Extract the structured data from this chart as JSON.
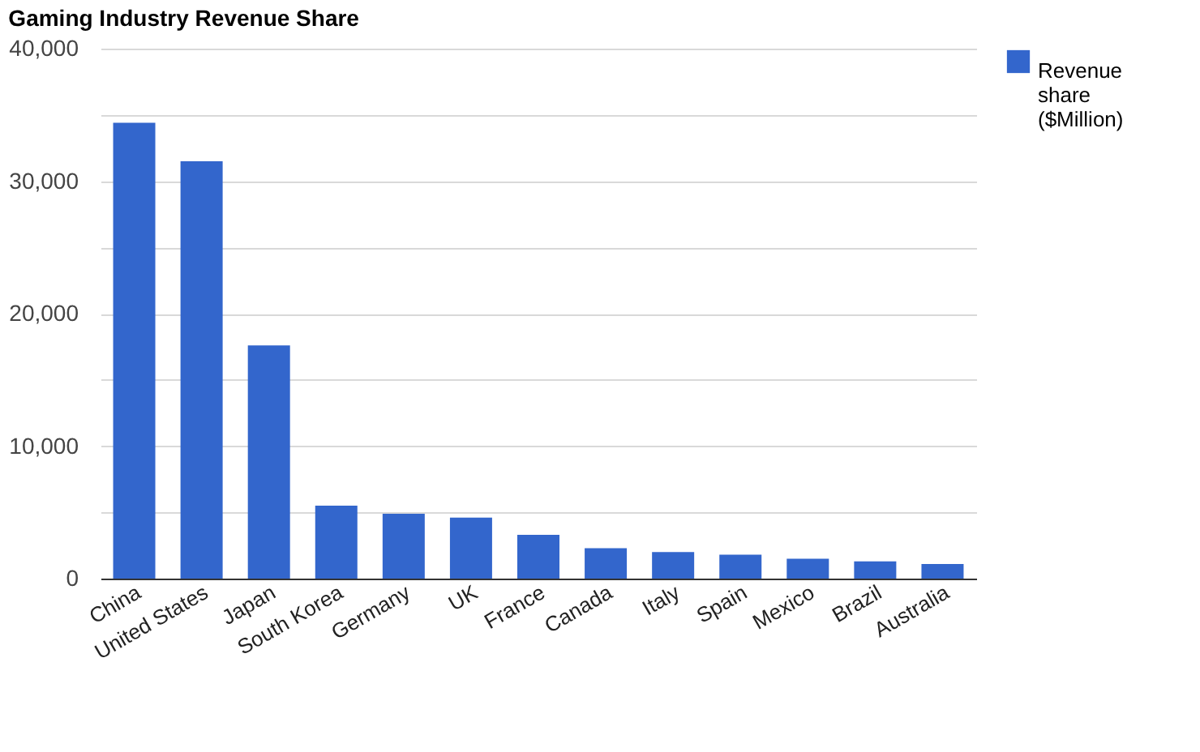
{
  "chart_data": {
    "type": "bar",
    "title": "Gaming Industry Revenue Share",
    "categories": [
      "China",
      "United States",
      "Japan",
      "South Korea",
      "Germany",
      "UK",
      "France",
      "Canada",
      "Italy",
      "Spain",
      "Mexico",
      "Brazil",
      "Australia"
    ],
    "series": [
      {
        "name": "Revenue share ($Million)",
        "color": "#3366cc",
        "values": [
          34400,
          31500,
          17600,
          5500,
          4900,
          4600,
          3300,
          2300,
          2000,
          1800,
          1500,
          1300,
          1100
        ]
      }
    ],
    "ylim": [
      0,
      40000
    ],
    "yticks": [
      0,
      {
        "value": 5000,
        "label": null
      },
      {
        "value": 10000,
        "label": "10,000"
      },
      {
        "value": 15000,
        "label": null
      },
      {
        "value": 20000,
        "label": "20,000"
      },
      {
        "value": 25000,
        "label": null
      },
      {
        "value": 30000,
        "label": "30,000"
      },
      {
        "value": 35000,
        "label": null
      },
      {
        "value": 40000,
        "label": "40,000"
      }
    ],
    "grid": "y",
    "legend": "top right"
  }
}
